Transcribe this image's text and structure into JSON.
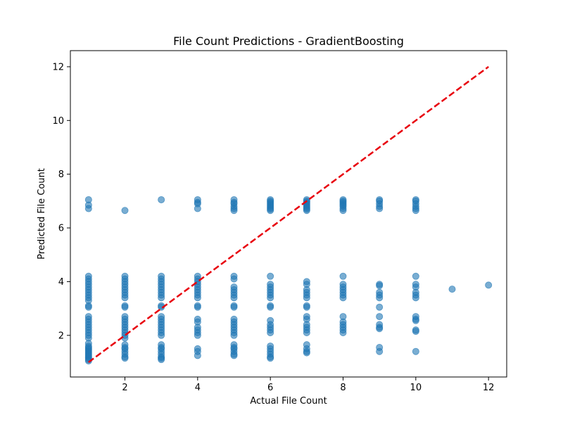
{
  "chart_data": {
    "type": "scatter",
    "title": "File Count Predictions - GradientBoosting",
    "xlabel": "Actual File Count",
    "ylabel": "Predicted File Count",
    "xlim": [
      0.5,
      12.5
    ],
    "ylim": [
      0.45,
      12.6
    ],
    "xticks": [
      2,
      4,
      6,
      8,
      10,
      12
    ],
    "yticks": [
      2,
      4,
      6,
      8,
      10,
      12
    ],
    "xtick_labels": [
      "2",
      "4",
      "6",
      "8",
      "10",
      "12"
    ],
    "ytick_labels": [
      "2",
      "4",
      "6",
      "8",
      "10",
      "12"
    ],
    "grid": false,
    "colors": {
      "points": "#1f77b4",
      "reference_line": "#e8000b"
    },
    "reference_line": {
      "style": "dashed",
      "from": [
        1,
        1
      ],
      "to": [
        12,
        12
      ]
    },
    "series": [
      {
        "points": [
          [
            1,
            7.05
          ],
          [
            1,
            6.85
          ],
          [
            1,
            6.72
          ],
          [
            1,
            4.2
          ],
          [
            1,
            4.1
          ],
          [
            1,
            4.0
          ],
          [
            1,
            3.9
          ],
          [
            1,
            3.8
          ],
          [
            1,
            3.7
          ],
          [
            1,
            3.6
          ],
          [
            1,
            3.5
          ],
          [
            1,
            3.4
          ],
          [
            1,
            3.3
          ],
          [
            1,
            3.1
          ],
          [
            1,
            3.05
          ],
          [
            1,
            2.7
          ],
          [
            1,
            2.6
          ],
          [
            1,
            2.5
          ],
          [
            1,
            2.4
          ],
          [
            1,
            2.3
          ],
          [
            1,
            2.2
          ],
          [
            1,
            2.1
          ],
          [
            1,
            2.0
          ],
          [
            1,
            1.9
          ],
          [
            1,
            1.7
          ],
          [
            1,
            1.6
          ],
          [
            1,
            1.55
          ],
          [
            1,
            1.5
          ],
          [
            1,
            1.45
          ],
          [
            1,
            1.4
          ],
          [
            1,
            1.35
          ],
          [
            1,
            1.3
          ],
          [
            1,
            1.25
          ],
          [
            1,
            1.2
          ],
          [
            1,
            1.15
          ],
          [
            1,
            1.1
          ],
          [
            1,
            1.05
          ],
          [
            2,
            6.65
          ],
          [
            2,
            4.2
          ],
          [
            2,
            4.1
          ],
          [
            2,
            4.0
          ],
          [
            2,
            3.9
          ],
          [
            2,
            3.8
          ],
          [
            2,
            3.7
          ],
          [
            2,
            3.6
          ],
          [
            2,
            3.5
          ],
          [
            2,
            3.4
          ],
          [
            2,
            3.1
          ],
          [
            2,
            3.05
          ],
          [
            2,
            2.7
          ],
          [
            2,
            2.6
          ],
          [
            2,
            2.5
          ],
          [
            2,
            2.4
          ],
          [
            2,
            2.3
          ],
          [
            2,
            2.2
          ],
          [
            2,
            2.1
          ],
          [
            2,
            2.0
          ],
          [
            2,
            1.9
          ],
          [
            2,
            1.65
          ],
          [
            2,
            1.55
          ],
          [
            2,
            1.5
          ],
          [
            2,
            1.4
          ],
          [
            2,
            1.3
          ],
          [
            2,
            1.2
          ],
          [
            2,
            1.15
          ],
          [
            3,
            7.05
          ],
          [
            3,
            4.2
          ],
          [
            3,
            4.1
          ],
          [
            3,
            4.0
          ],
          [
            3,
            3.9
          ],
          [
            3,
            3.8
          ],
          [
            3,
            3.7
          ],
          [
            3,
            3.6
          ],
          [
            3,
            3.5
          ],
          [
            3,
            3.4
          ],
          [
            3,
            3.1
          ],
          [
            3,
            3.05
          ],
          [
            3,
            2.7
          ],
          [
            3,
            2.6
          ],
          [
            3,
            2.5
          ],
          [
            3,
            2.4
          ],
          [
            3,
            2.3
          ],
          [
            3,
            2.2
          ],
          [
            3,
            2.1
          ],
          [
            3,
            2.0
          ],
          [
            3,
            1.65
          ],
          [
            3,
            1.55
          ],
          [
            3,
            1.5
          ],
          [
            3,
            1.4
          ],
          [
            3,
            1.3
          ],
          [
            3,
            1.2
          ],
          [
            3,
            1.15
          ],
          [
            3,
            1.1
          ],
          [
            4,
            7.05
          ],
          [
            4,
            6.95
          ],
          [
            4,
            6.9
          ],
          [
            4,
            6.72
          ],
          [
            4,
            4.2
          ],
          [
            4,
            4.1
          ],
          [
            4,
            4.0
          ],
          [
            4,
            3.9
          ],
          [
            4,
            3.8
          ],
          [
            4,
            3.7
          ],
          [
            4,
            3.6
          ],
          [
            4,
            3.5
          ],
          [
            4,
            3.4
          ],
          [
            4,
            3.1
          ],
          [
            4,
            3.05
          ],
          [
            4,
            2.6
          ],
          [
            4,
            2.5
          ],
          [
            4,
            2.3
          ],
          [
            4,
            2.2
          ],
          [
            4,
            2.1
          ],
          [
            4,
            2.0
          ],
          [
            4,
            1.5
          ],
          [
            4,
            1.4
          ],
          [
            4,
            1.25
          ],
          [
            5,
            7.05
          ],
          [
            5,
            6.95
          ],
          [
            5,
            6.9
          ],
          [
            5,
            6.8
          ],
          [
            5,
            6.72
          ],
          [
            5,
            6.65
          ],
          [
            5,
            4.2
          ],
          [
            5,
            4.1
          ],
          [
            5,
            3.8
          ],
          [
            5,
            3.7
          ],
          [
            5,
            3.6
          ],
          [
            5,
            3.5
          ],
          [
            5,
            3.4
          ],
          [
            5,
            3.1
          ],
          [
            5,
            3.05
          ],
          [
            5,
            2.6
          ],
          [
            5,
            2.5
          ],
          [
            5,
            2.4
          ],
          [
            5,
            2.3
          ],
          [
            5,
            2.2
          ],
          [
            5,
            2.1
          ],
          [
            5,
            2.0
          ],
          [
            5,
            1.65
          ],
          [
            5,
            1.55
          ],
          [
            5,
            1.5
          ],
          [
            5,
            1.4
          ],
          [
            5,
            1.3
          ],
          [
            5,
            1.25
          ],
          [
            6,
            7.05
          ],
          [
            6,
            7.0
          ],
          [
            6,
            6.95
          ],
          [
            6,
            6.9
          ],
          [
            6,
            6.85
          ],
          [
            6,
            6.8
          ],
          [
            6,
            6.75
          ],
          [
            6,
            6.7
          ],
          [
            6,
            6.65
          ],
          [
            6,
            4.2
          ],
          [
            6,
            3.9
          ],
          [
            6,
            3.8
          ],
          [
            6,
            3.7
          ],
          [
            6,
            3.6
          ],
          [
            6,
            3.5
          ],
          [
            6,
            3.4
          ],
          [
            6,
            3.1
          ],
          [
            6,
            3.05
          ],
          [
            6,
            2.55
          ],
          [
            6,
            2.4
          ],
          [
            6,
            2.3
          ],
          [
            6,
            2.2
          ],
          [
            6,
            2.1
          ],
          [
            6,
            1.6
          ],
          [
            6,
            1.5
          ],
          [
            6,
            1.4
          ],
          [
            6,
            1.3
          ],
          [
            6,
            1.2
          ],
          [
            6,
            1.15
          ],
          [
            7,
            7.05
          ],
          [
            7,
            7.0
          ],
          [
            7,
            6.95
          ],
          [
            7,
            6.9
          ],
          [
            7,
            6.85
          ],
          [
            7,
            6.8
          ],
          [
            7,
            6.75
          ],
          [
            7,
            6.7
          ],
          [
            7,
            6.65
          ],
          [
            7,
            4.0
          ],
          [
            7,
            3.9
          ],
          [
            7,
            3.7
          ],
          [
            7,
            3.6
          ],
          [
            7,
            3.5
          ],
          [
            7,
            3.4
          ],
          [
            7,
            3.1
          ],
          [
            7,
            3.05
          ],
          [
            7,
            2.7
          ],
          [
            7,
            2.6
          ],
          [
            7,
            2.4
          ],
          [
            7,
            2.3
          ],
          [
            7,
            2.2
          ],
          [
            7,
            2.1
          ],
          [
            7,
            1.65
          ],
          [
            7,
            1.5
          ],
          [
            7,
            1.4
          ],
          [
            7,
            1.35
          ],
          [
            8,
            7.05
          ],
          [
            8,
            7.0
          ],
          [
            8,
            6.95
          ],
          [
            8,
            6.9
          ],
          [
            8,
            6.85
          ],
          [
            8,
            6.8
          ],
          [
            8,
            6.72
          ],
          [
            8,
            6.65
          ],
          [
            8,
            4.2
          ],
          [
            8,
            3.9
          ],
          [
            8,
            3.8
          ],
          [
            8,
            3.7
          ],
          [
            8,
            3.6
          ],
          [
            8,
            3.5
          ],
          [
            8,
            3.4
          ],
          [
            8,
            2.7
          ],
          [
            8,
            2.5
          ],
          [
            8,
            2.4
          ],
          [
            8,
            2.3
          ],
          [
            8,
            2.2
          ],
          [
            8,
            2.1
          ],
          [
            9,
            7.05
          ],
          [
            9,
            7.0
          ],
          [
            9,
            6.9
          ],
          [
            9,
            6.8
          ],
          [
            9,
            6.72
          ],
          [
            9,
            3.9
          ],
          [
            9,
            3.85
          ],
          [
            9,
            3.6
          ],
          [
            9,
            3.5
          ],
          [
            9,
            3.4
          ],
          [
            9,
            3.05
          ],
          [
            9,
            2.7
          ],
          [
            9,
            2.4
          ],
          [
            9,
            2.3
          ],
          [
            9,
            2.25
          ],
          [
            9,
            1.55
          ],
          [
            9,
            1.4
          ],
          [
            10,
            7.05
          ],
          [
            10,
            7.0
          ],
          [
            10,
            6.9
          ],
          [
            10,
            6.8
          ],
          [
            10,
            6.72
          ],
          [
            10,
            6.65
          ],
          [
            10,
            4.2
          ],
          [
            10,
            3.9
          ],
          [
            10,
            3.8
          ],
          [
            10,
            3.6
          ],
          [
            10,
            3.5
          ],
          [
            10,
            3.4
          ],
          [
            10,
            2.7
          ],
          [
            10,
            2.6
          ],
          [
            10,
            2.55
          ],
          [
            10,
            2.2
          ],
          [
            10,
            2.15
          ],
          [
            10,
            1.4
          ],
          [
            11,
            3.72
          ],
          [
            12,
            3.87
          ]
        ]
      }
    ]
  }
}
